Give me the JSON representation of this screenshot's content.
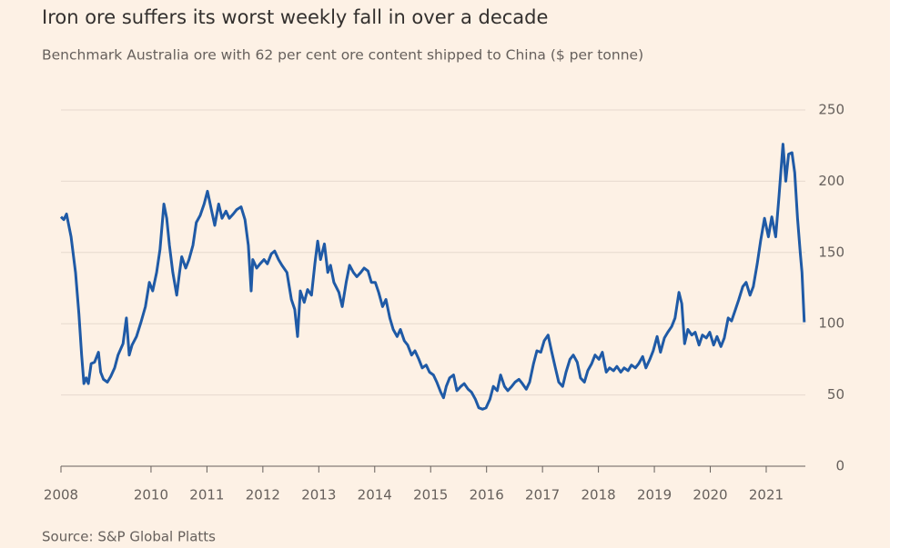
{
  "chart_data": {
    "type": "line",
    "title": "Iron ore suffers its worst weekly fall in over a decade",
    "subtitle": "Benchmark Australia ore with 62 per cent ore content shipped to China ($ per tonne)",
    "source": "Source: S&P Global Platts",
    "x": [
      2008.39,
      2008.44,
      2008.49,
      2008.57,
      2008.65,
      2008.71,
      2008.76,
      2008.8,
      2008.84,
      2008.88,
      2008.93,
      2008.99,
      2009.06,
      2009.1,
      2009.15,
      2009.22,
      2009.28,
      2009.35,
      2009.41,
      2009.5,
      2009.56,
      2009.61,
      2009.66,
      2009.74,
      2009.82,
      2009.9,
      2009.97,
      2010.03,
      2010.1,
      2010.16,
      2010.23,
      2010.28,
      2010.33,
      2010.39,
      2010.46,
      2010.51,
      2010.55,
      2010.62,
      2010.68,
      2010.75,
      2010.81,
      2010.88,
      2010.95,
      2011.01,
      2011.08,
      2011.14,
      2011.21,
      2011.27,
      2011.34,
      2011.4,
      2011.47,
      2011.53,
      2011.61,
      2011.68,
      2011.74,
      2011.79,
      2011.82,
      2011.89,
      2011.95,
      2012.02,
      2012.08,
      2012.15,
      2012.21,
      2012.28,
      2012.34,
      2012.43,
      2012.51,
      2012.57,
      2012.62,
      2012.67,
      2012.74,
      2012.8,
      2012.87,
      2012.93,
      2012.98,
      2013.03,
      2013.1,
      2013.16,
      2013.21,
      2013.27,
      2013.36,
      2013.42,
      2013.49,
      2013.55,
      2013.62,
      2013.68,
      2013.75,
      2013.81,
      2013.88,
      2013.94,
      2014.01,
      2014.07,
      2014.14,
      2014.2,
      2014.27,
      2014.33,
      2014.4,
      2014.46,
      2014.53,
      2014.59,
      2014.66,
      2014.72,
      2014.79,
      2014.85,
      2014.92,
      2014.98,
      2015.05,
      2015.11,
      2015.18,
      2015.23,
      2015.28,
      2015.34,
      2015.41,
      2015.47,
      2015.54,
      2015.6,
      2015.67,
      2015.73,
      2015.8,
      2015.86,
      2015.93,
      2015.99,
      2016.06,
      2016.12,
      2016.19,
      2016.25,
      2016.32,
      2016.38,
      2016.45,
      2016.51,
      2016.58,
      2016.64,
      2016.71,
      2016.77,
      2016.84,
      2016.9,
      2016.97,
      2017.03,
      2017.1,
      2017.16,
      2017.23,
      2017.29,
      2017.36,
      2017.42,
      2017.49,
      2017.55,
      2017.62,
      2017.68,
      2017.75,
      2017.81,
      2017.88,
      2017.94,
      2018.01,
      2018.07,
      2018.14,
      2018.2,
      2018.27,
      2018.33,
      2018.4,
      2018.46,
      2018.53,
      2018.59,
      2018.66,
      2018.72,
      2018.79,
      2018.85,
      2018.92,
      2018.98,
      2019.05,
      2019.11,
      2019.18,
      2019.24,
      2019.31,
      2019.37,
      2019.44,
      2019.49,
      2019.54,
      2019.6,
      2019.67,
      2019.73,
      2019.8,
      2019.86,
      2019.93,
      2019.99,
      2020.06,
      2020.12,
      2020.19,
      2020.25,
      2020.32,
      2020.38,
      2020.45,
      2020.51,
      2020.58,
      2020.64,
      2020.71,
      2020.77,
      2020.84,
      2020.9,
      2020.97,
      2021.04,
      2021.1,
      2021.17,
      2021.23,
      2021.3,
      2021.35,
      2021.4,
      2021.46,
      2021.51,
      2021.56,
      2021.61,
      2021.64,
      2021.68
    ],
    "series": [
      {
        "color": "#1f5aa6",
        "values": [
          175,
          173,
          177,
          161,
          136,
          107,
          78,
          58,
          62,
          58,
          72,
          73,
          80,
          66,
          61,
          59,
          63,
          69,
          78,
          86,
          104,
          78,
          85,
          91,
          101,
          112,
          129,
          123,
          136,
          152,
          184,
          174,
          155,
          136,
          120,
          136,
          147,
          139,
          145,
          155,
          171,
          176,
          184,
          193,
          180,
          169,
          184,
          174,
          179,
          174,
          177,
          180,
          182,
          173,
          155,
          123,
          145,
          139,
          142,
          145,
          142,
          149,
          151,
          145,
          141,
          136,
          117,
          110,
          91,
          123,
          115,
          124,
          120,
          142,
          158,
          145,
          156,
          136,
          141,
          129,
          122,
          112,
          129,
          141,
          136,
          133,
          136,
          139,
          137,
          129,
          129,
          122,
          112,
          117,
          104,
          96,
          91,
          96,
          88,
          85,
          78,
          81,
          75,
          69,
          71,
          66,
          64,
          59,
          52,
          48,
          56,
          62,
          64,
          53,
          56,
          58,
          54,
          52,
          47,
          41,
          40,
          41,
          47,
          56,
          53,
          64,
          56,
          53,
          56,
          59,
          61,
          58,
          54,
          59,
          72,
          81,
          80,
          88,
          92,
          81,
          69,
          59,
          56,
          66,
          75,
          78,
          73,
          62,
          59,
          67,
          72,
          78,
          75,
          80,
          66,
          69,
          67,
          70,
          66,
          69,
          67,
          71,
          69,
          72,
          77,
          69,
          75,
          81,
          91,
          80,
          90,
          94,
          98,
          104,
          122,
          114,
          86,
          96,
          92,
          94,
          85,
          92,
          90,
          94,
          85,
          91,
          84,
          90,
          104,
          102,
          110,
          117,
          126,
          129,
          120,
          126,
          142,
          158,
          174,
          161,
          175,
          161,
          190,
          226,
          200,
          219,
          220,
          206,
          174,
          149,
          136,
          101
        ]
      }
    ],
    "xlim": [
      2008.39,
      2021.7
    ],
    "xticks": [
      {
        "value": 2008.39,
        "label": "2008"
      },
      2010,
      2011,
      2012,
      2013,
      2014,
      2015,
      2016,
      2017,
      2018,
      2019,
      2020,
      2021
    ],
    "ylim": [
      0,
      250
    ],
    "yticks": [
      0,
      50,
      100,
      150,
      200,
      250
    ],
    "grid": true
  }
}
